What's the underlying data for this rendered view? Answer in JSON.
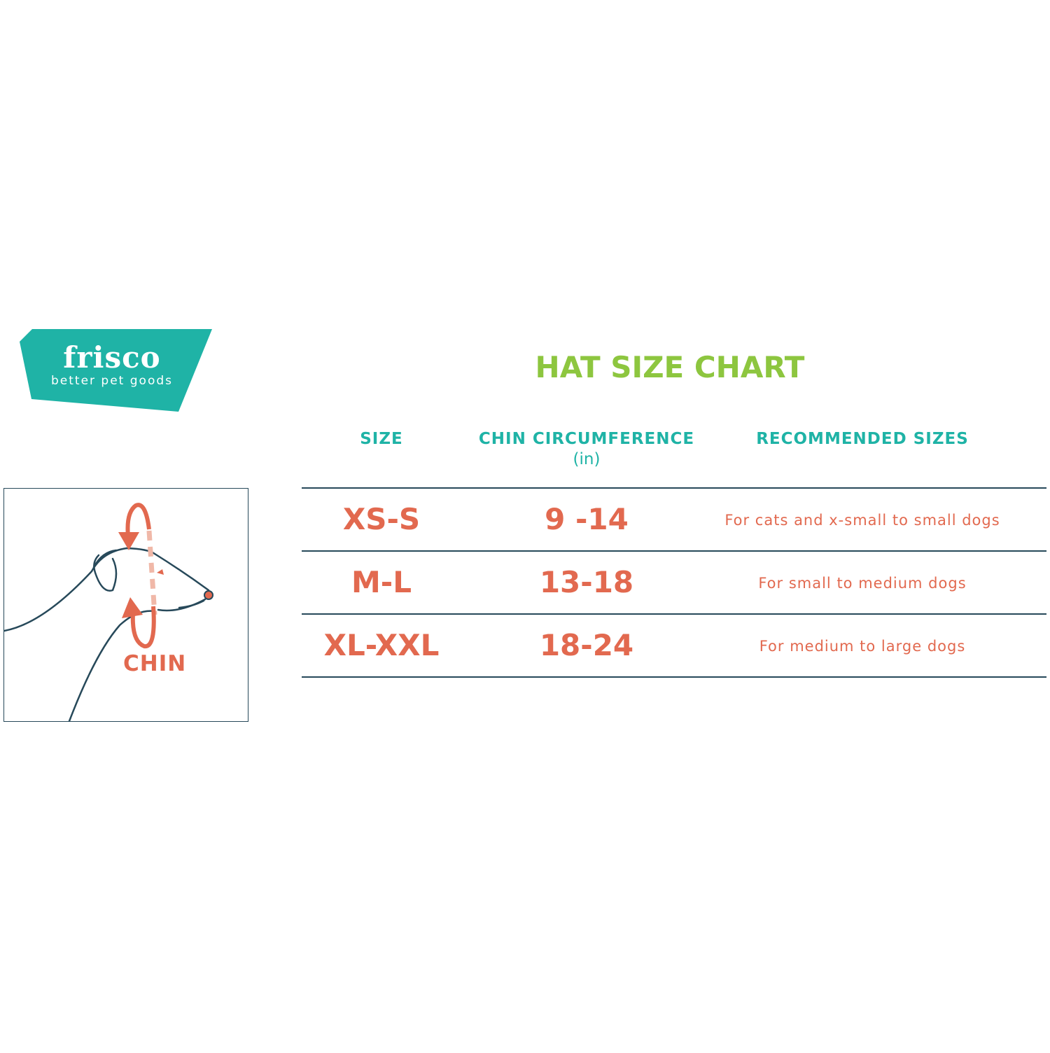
{
  "colors": {
    "brand_teal": "#1fb3a6",
    "title_green": "#8dc63f",
    "accent_coral": "#e2694f",
    "line_navy": "#27495a"
  },
  "logo": {
    "name": "frisco",
    "tagline": "better pet goods"
  },
  "illustration": {
    "label": "CHIN"
  },
  "chart": {
    "title": "HAT SIZE CHART",
    "headers": {
      "size": "SIZE",
      "chin": "CHIN CIRCUMFERENCE",
      "chin_unit": "(in)",
      "recommended": "RECOMMENDED SIZES"
    },
    "rows": [
      {
        "size": "XS-S",
        "chin": "9 -14",
        "recommended": "For cats and x-small to small dogs"
      },
      {
        "size": "M-L",
        "chin": "13-18",
        "recommended": "For small to medium dogs"
      },
      {
        "size": "XL-XXL",
        "chin": "18-24",
        "recommended": "For medium to large dogs"
      }
    ]
  }
}
